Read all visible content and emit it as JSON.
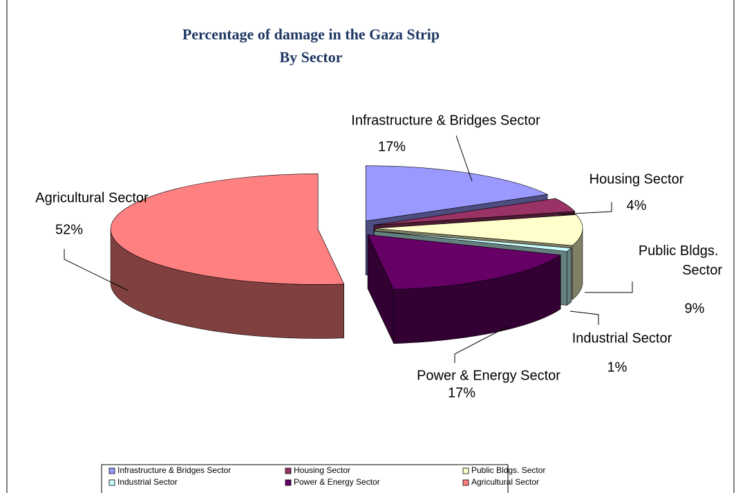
{
  "chart_data": {
    "type": "pie3d",
    "title": "Percentage of damage in the Gaza Strip",
    "subtitle": "By Sector",
    "categories": [
      "Infrastructure & Bridges Sector",
      "Housing Sector",
      "Public Bldgs. Sector",
      "Industrial Sector",
      "Power & Energy Sector",
      "Agricultural Sector"
    ],
    "values": [
      17,
      4,
      9,
      1,
      17,
      52
    ],
    "value_labels": [
      "17%",
      "4%",
      "9%",
      "1%",
      "17%",
      "52%"
    ],
    "colors": [
      "#9999ff",
      "#993366",
      "#ffffcc",
      "#ccffff",
      "#660066",
      "#ff8080"
    ],
    "legend": "bottom"
  }
}
